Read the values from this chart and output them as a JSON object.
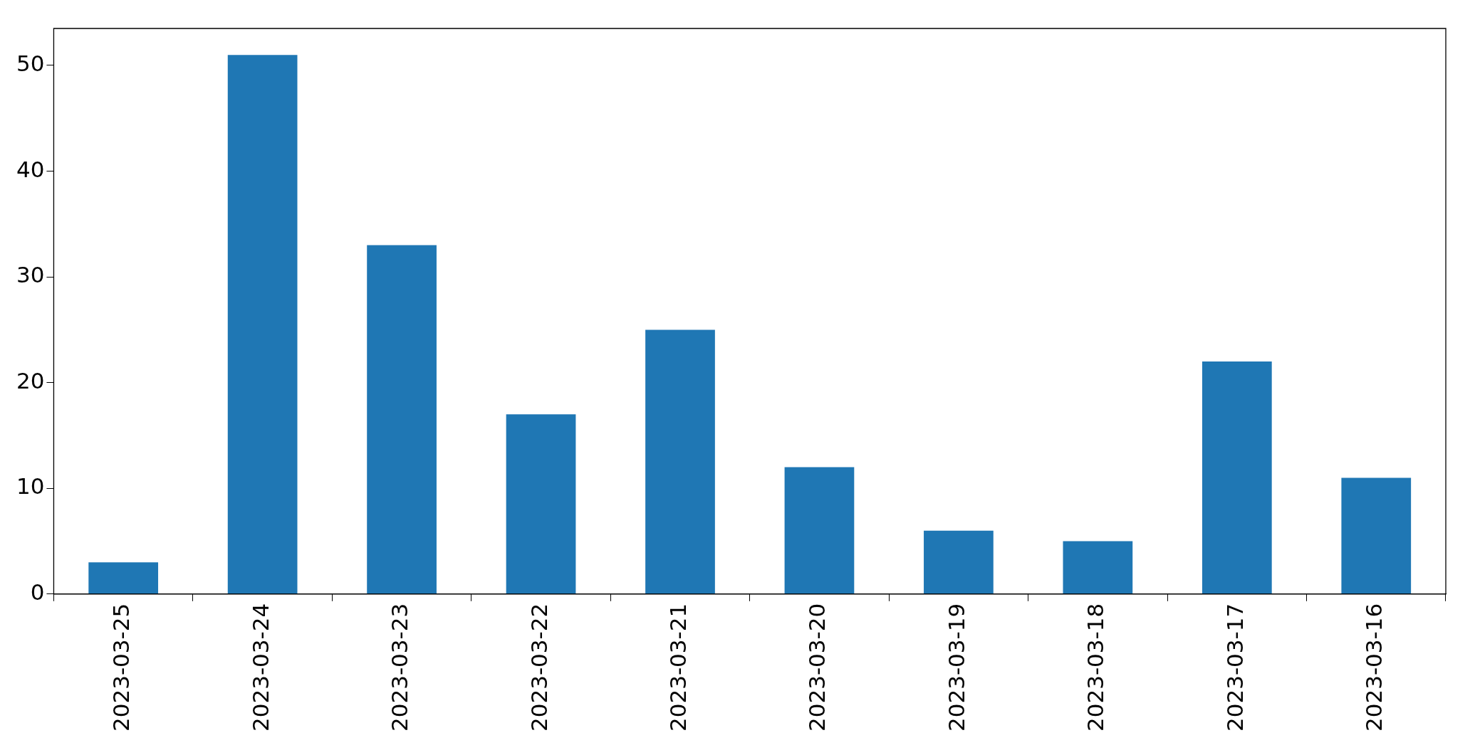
{
  "chart_data": {
    "type": "bar",
    "categories": [
      "2023-03-25",
      "2023-03-24",
      "2023-03-23",
      "2023-03-22",
      "2023-03-21",
      "2023-03-20",
      "2023-03-19",
      "2023-03-18",
      "2023-03-17",
      "2023-03-16"
    ],
    "values": [
      3,
      51,
      33,
      17,
      25,
      12,
      6,
      5,
      22,
      11
    ],
    "color": "#1f77b4",
    "ylim": [
      0,
      53.5
    ],
    "yticks": [
      0,
      10,
      20,
      30,
      40,
      50
    ],
    "grid": false,
    "legend": false
  }
}
